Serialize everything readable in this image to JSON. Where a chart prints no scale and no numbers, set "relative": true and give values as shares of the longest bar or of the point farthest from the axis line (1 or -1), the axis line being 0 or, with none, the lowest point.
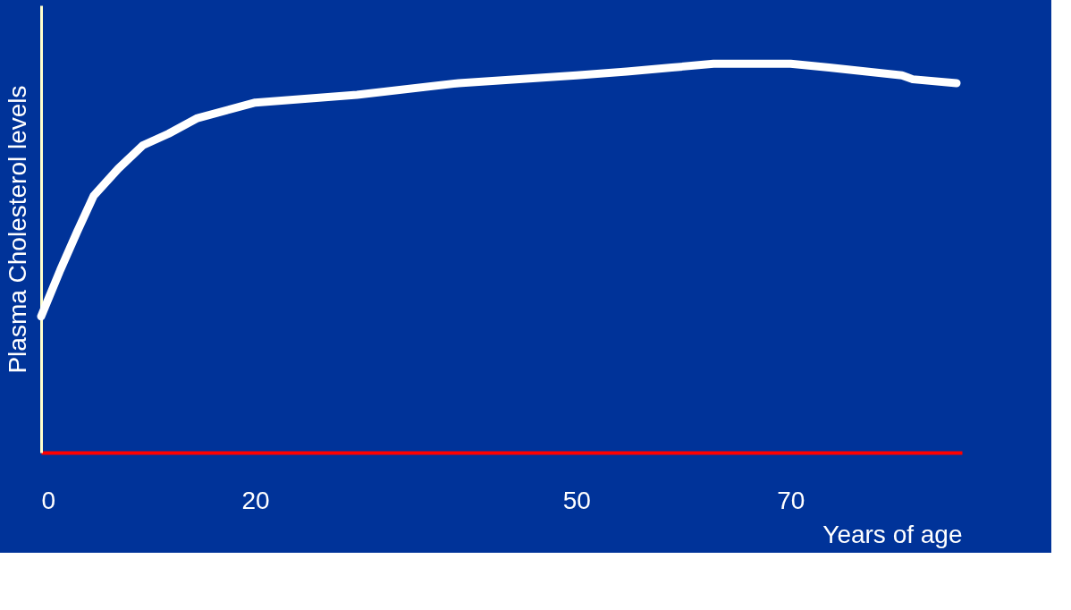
{
  "chart_data": {
    "type": "line",
    "relative": true,
    "xlabel": "Years of age",
    "ylabel": "Plasma Cholesterol levels",
    "x": [
      0,
      1.8,
      3.4,
      4.9,
      7.2,
      9.5,
      11.9,
      14.6,
      20,
      29.5,
      39,
      50,
      54.7,
      58.9,
      62.8,
      70,
      73.6,
      80.4,
      81.4,
      85.5
    ],
    "xlim": [
      0,
      86
    ],
    "xticks": [
      0,
      20,
      50,
      70
    ],
    "series": [
      {
        "color": "#ffffff",
        "values": [
          0.35,
          0.47,
          0.57,
          0.66,
          0.73,
          0.79,
          0.82,
          0.86,
          0.9,
          0.92,
          0.95,
          0.97,
          0.98,
          0.99,
          1.0,
          1.0,
          0.99,
          0.97,
          0.96,
          0.95
        ]
      }
    ],
    "grid": false,
    "marker": "none",
    "line_style": "solid"
  }
}
